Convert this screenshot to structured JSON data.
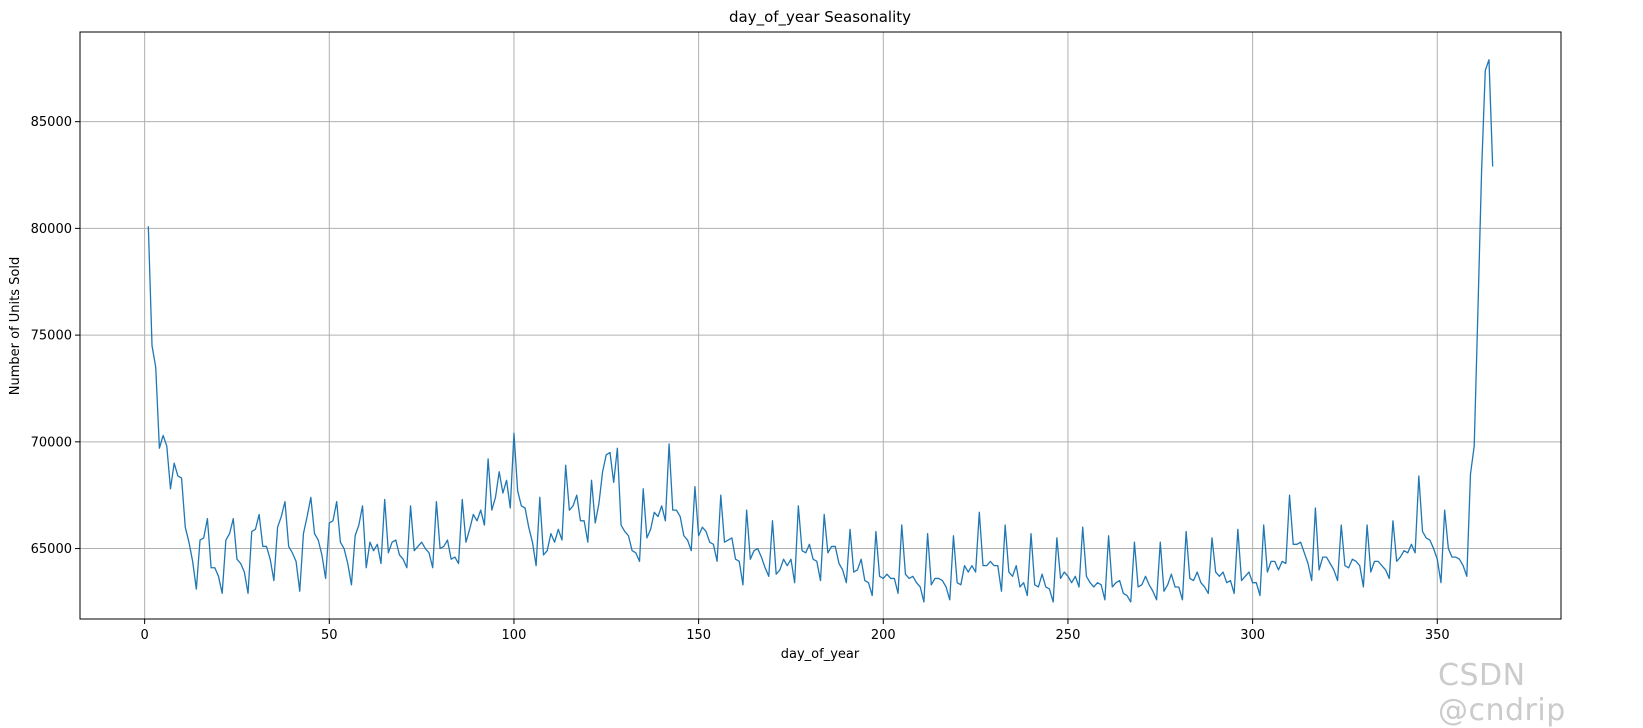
{
  "watermark": "CSDN @cndrip",
  "chart_data": {
    "type": "line",
    "title": "day_of_year Seasonality",
    "xlabel": "day_of_year",
    "ylabel": "Number of Units Sold",
    "xlim": [
      -17.5,
      383.5
    ],
    "ylim": [
      61700,
      89200
    ],
    "xticks": [
      0,
      50,
      100,
      150,
      200,
      250,
      300,
      350
    ],
    "yticks": [
      65000,
      70000,
      75000,
      80000,
      85000
    ],
    "grid": true,
    "line_color": "#1f77b4",
    "series": [
      {
        "x": [
          1,
          2,
          3,
          4,
          5,
          6,
          7,
          8,
          9,
          10,
          11,
          12,
          13,
          14,
          15,
          16,
          17,
          18,
          19,
          20,
          21,
          22,
          23,
          24,
          25,
          26,
          27,
          28,
          29,
          30,
          31,
          32,
          33,
          34,
          35,
          36,
          37,
          38,
          39,
          40,
          41,
          42,
          43,
          44,
          45,
          46,
          47,
          48,
          49,
          50,
          51,
          52,
          53,
          54,
          55,
          56,
          57,
          58,
          59,
          60,
          61,
          62,
          63,
          64,
          65,
          66,
          67,
          68,
          69,
          70,
          71,
          72,
          73,
          74,
          75,
          76,
          77,
          78,
          79,
          80,
          81,
          82,
          83,
          84,
          85,
          86,
          87,
          88,
          89,
          90,
          91,
          92,
          93,
          94,
          95,
          96,
          97,
          98,
          99,
          100,
          101,
          102,
          103,
          104,
          105,
          106,
          107,
          108,
          109,
          110,
          111,
          112,
          113,
          114,
          115,
          116,
          117,
          118,
          119,
          120,
          121,
          122,
          123,
          124,
          125,
          126,
          127,
          128,
          129,
          130,
          131,
          132,
          133,
          134,
          135,
          136,
          137,
          138,
          139,
          140,
          141,
          142,
          143,
          144,
          145,
          146,
          147,
          148,
          149,
          150,
          151,
          152,
          153,
          154,
          155,
          156,
          157,
          158,
          159,
          160,
          161,
          162,
          163,
          164,
          165,
          166,
          167,
          168,
          169,
          170,
          171,
          172,
          173,
          174,
          175,
          176,
          177,
          178,
          179,
          180,
          181,
          182,
          183,
          184,
          185,
          186,
          187,
          188,
          189,
          190,
          191,
          192,
          193,
          194,
          195,
          196,
          197,
          198,
          199,
          200,
          201,
          202,
          203,
          204,
          205,
          206,
          207,
          208,
          209,
          210,
          211,
          212,
          213,
          214,
          215,
          216,
          217,
          218,
          219,
          220,
          221,
          222,
          223,
          224,
          225,
          226,
          227,
          228,
          229,
          230,
          231,
          232,
          233,
          234,
          235,
          236,
          237,
          238,
          239,
          240,
          241,
          242,
          243,
          244,
          245,
          246,
          247,
          248,
          249,
          250,
          251,
          252,
          253,
          254,
          255,
          256,
          257,
          258,
          259,
          260,
          261,
          262,
          263,
          264,
          265,
          266,
          267,
          268,
          269,
          270,
          271,
          272,
          273,
          274,
          275,
          276,
          277,
          278,
          279,
          280,
          281,
          282,
          283,
          284,
          285,
          286,
          287,
          288,
          289,
          290,
          291,
          292,
          293,
          294,
          295,
          296,
          297,
          298,
          299,
          300,
          301,
          302,
          303,
          304,
          305,
          306,
          307,
          308,
          309,
          310,
          311,
          312,
          313,
          314,
          315,
          316,
          317,
          318,
          319,
          320,
          321,
          322,
          323,
          324,
          325,
          326,
          327,
          328,
          329,
          330,
          331,
          332,
          333,
          334,
          335,
          336,
          337,
          338,
          339,
          340,
          341,
          342,
          343,
          344,
          345,
          346,
          347,
          348,
          349,
          350,
          351,
          352,
          353,
          354,
          355,
          356,
          357,
          358,
          359,
          360,
          361,
          362,
          363,
          364,
          365
        ],
        "y": [
          80100,
          74500,
          73500,
          69700,
          70300,
          69800,
          67800,
          69000,
          68400,
          68300,
          66000,
          65300,
          64400,
          63100,
          65400,
          65500,
          66400,
          64100,
          64100,
          63700,
          62900,
          65400,
          65700,
          66400,
          64500,
          64300,
          63900,
          62900,
          65800,
          65900,
          66600,
          65100,
          65100,
          64500,
          63500,
          66000,
          66500,
          67200,
          65100,
          64800,
          64400,
          63000,
          65700,
          66500,
          67400,
          65700,
          65400,
          64700,
          63600,
          66200,
          66300,
          67200,
          65300,
          65000,
          64300,
          63300,
          65600,
          66100,
          67000,
          64100,
          65300,
          64900,
          65200,
          64300,
          67300,
          64800,
          65300,
          65400,
          64700,
          64500,
          64100,
          67000,
          64900,
          65100,
          65300,
          65000,
          64800,
          64100,
          67200,
          65000,
          65100,
          65400,
          64500,
          64600,
          64300,
          67300,
          65300,
          65900,
          66600,
          66300,
          66800,
          66100,
          69200,
          66800,
          67400,
          68600,
          67600,
          68200,
          66900,
          70400,
          67700,
          67000,
          66900,
          66000,
          65300,
          64200,
          67400,
          64700,
          64900,
          65700,
          65300,
          65900,
          65400,
          68900,
          66800,
          67000,
          67500,
          66300,
          66300,
          65300,
          68200,
          66200,
          67100,
          68600,
          69400,
          69500,
          68100,
          69700,
          66100,
          65800,
          65600,
          64900,
          64800,
          64400,
          67800,
          65500,
          65900,
          66700,
          66500,
          67000,
          66300,
          69900,
          66800,
          66800,
          66500,
          65600,
          65400,
          64900,
          67900,
          65600,
          66000,
          65800,
          65300,
          65200,
          64400,
          67500,
          65300,
          65400,
          65500,
          64500,
          64400,
          63300,
          66800,
          64500,
          64900,
          65000,
          64600,
          64100,
          63700,
          66300,
          63800,
          64000,
          64500,
          64200,
          64500,
          63400,
          67000,
          64900,
          64800,
          65200,
          64500,
          64400,
          63500,
          66600,
          64800,
          65100,
          65100,
          64300,
          64000,
          63400,
          65900,
          63900,
          64000,
          64500,
          63500,
          63400,
          62800,
          65800,
          63700,
          63600,
          63800,
          63600,
          63600,
          62900,
          66100,
          63800,
          63600,
          63700,
          63400,
          63200,
          62500,
          65700,
          63300,
          63600,
          63600,
          63500,
          63200,
          62600,
          65600,
          63400,
          63300,
          64200,
          63900,
          64200,
          63900,
          66700,
          64200,
          64200,
          64400,
          64200,
          64200,
          63000,
          66100,
          63900,
          63700,
          64200,
          63200,
          63400,
          62800,
          65700,
          63300,
          63200,
          63800,
          63200,
          63100,
          62500,
          65500,
          63600,
          63900,
          63700,
          63400,
          63700,
          63200,
          66000,
          63700,
          63400,
          63200,
          63400,
          63300,
          62600,
          65600,
          63200,
          63400,
          63500,
          62900,
          62800,
          62500,
          65300,
          63200,
          63300,
          63700,
          63300,
          63000,
          62600,
          65300,
          63000,
          63300,
          63800,
          63200,
          63200,
          62600,
          65800,
          63600,
          63500,
          63900,
          63400,
          63200,
          62900,
          65500,
          63900,
          63700,
          63900,
          63400,
          63500,
          62900,
          65900,
          63500,
          63700,
          63900,
          63400,
          63400,
          62800,
          66100,
          63900,
          64400,
          64400,
          64000,
          64400,
          64300,
          67500,
          65200,
          65200,
          65300,
          64800,
          64300,
          63500,
          66900,
          64000,
          64600,
          64600,
          64300,
          64000,
          63500,
          66100,
          64200,
          64100,
          64500,
          64400,
          64200,
          63200,
          66100,
          63900,
          64400,
          64400,
          64200,
          64000,
          63600,
          66300,
          64400,
          64600,
          64900,
          64800,
          65200,
          64800,
          68400,
          65800,
          65500,
          65400,
          65000,
          64500,
          63400,
          66800,
          65000,
          64600,
          64600,
          64500,
          64200,
          63700,
          68500,
          69800,
          76100,
          82700,
          87400,
          87900,
          82900
        ]
      }
    ]
  }
}
